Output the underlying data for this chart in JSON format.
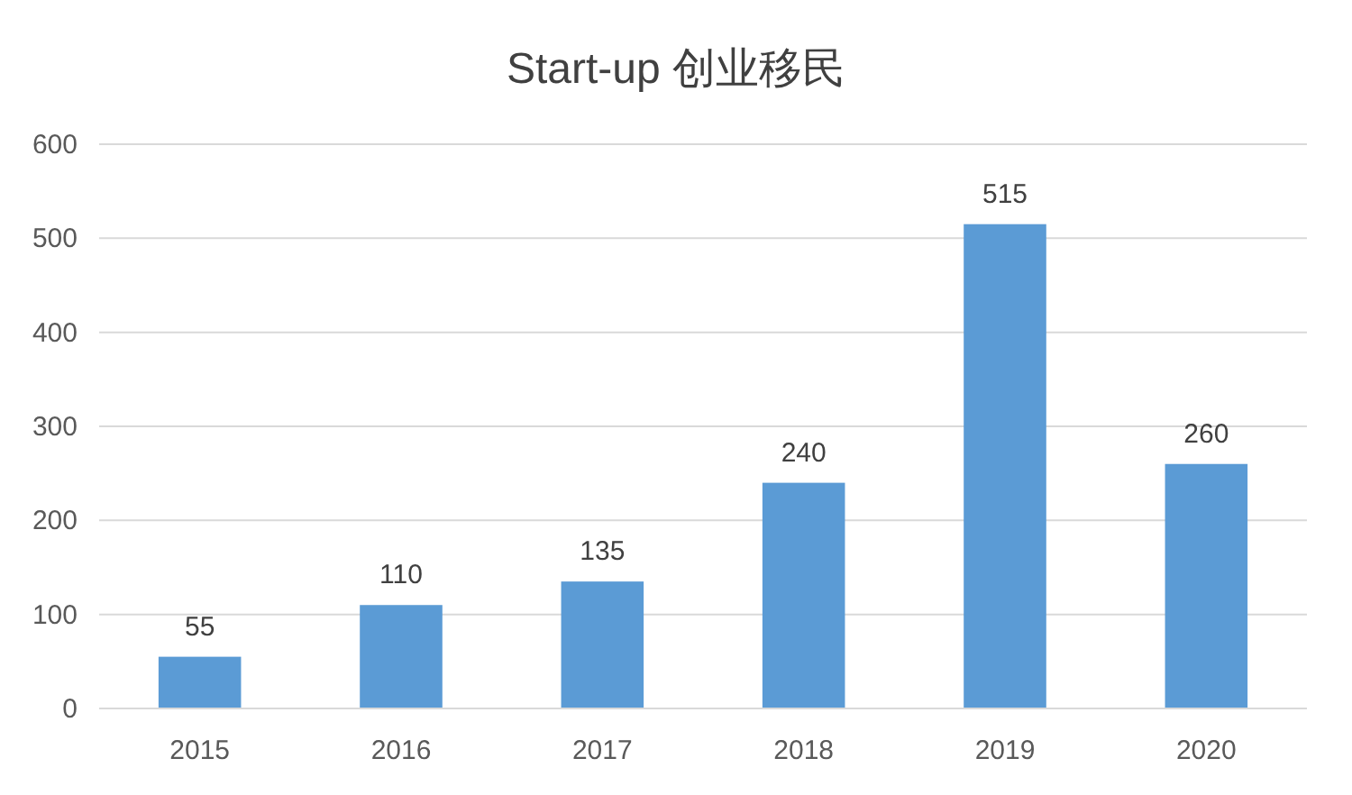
{
  "chart_data": {
    "type": "bar",
    "title": "Start-up 创业移民",
    "categories": [
      "2015",
      "2016",
      "2017",
      "2018",
      "2019",
      "2020"
    ],
    "values": [
      55,
      110,
      135,
      240,
      515,
      260
    ],
    "color": "#5b9bd5",
    "ylim": [
      0,
      600
    ],
    "yticks": [
      0,
      100,
      200,
      300,
      400,
      500,
      600
    ],
    "grid": "y",
    "data_labels": true
  }
}
